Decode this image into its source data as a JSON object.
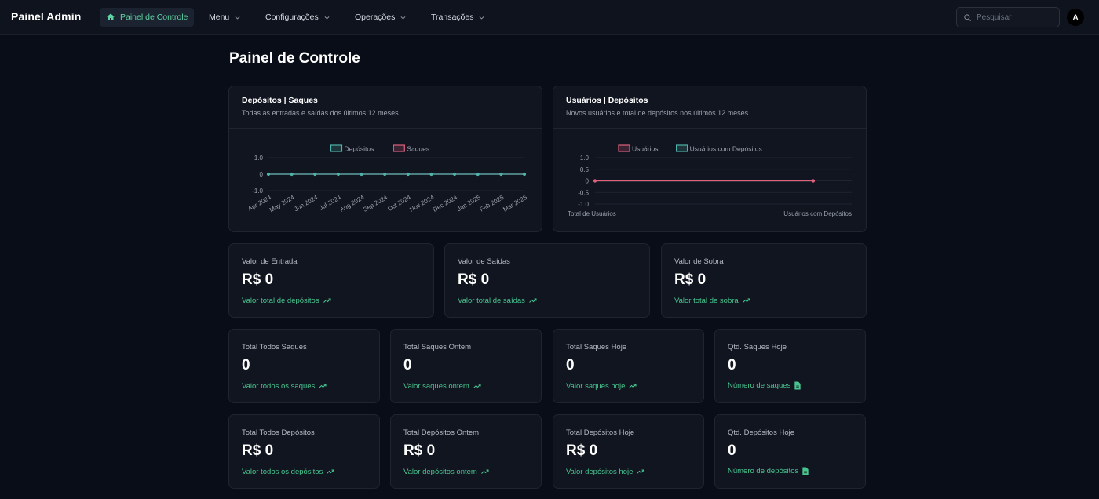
{
  "app": {
    "brand": "Painel Admin",
    "accent": "#5fd4a2",
    "background": "#090d17"
  },
  "nav": {
    "items": [
      {
        "label": "Painel de Controle",
        "icon": "home-icon",
        "active": true
      },
      {
        "label": "Menu",
        "icon": "chevron-down-icon"
      },
      {
        "label": "Configurações",
        "icon": "chevron-down-icon"
      },
      {
        "label": "Operações",
        "icon": "chevron-down-icon"
      },
      {
        "label": "Transações",
        "icon": "chevron-down-icon"
      }
    ]
  },
  "search": {
    "placeholder": "Pesquisar",
    "value": ""
  },
  "user": {
    "avatar_initial": "A"
  },
  "page": {
    "title": "Painel de Controle"
  },
  "chart_data": [
    {
      "type": "line",
      "title": "Depósitos | Saques",
      "subtitle": "Todas as entradas e saídas dos últimos 12 meses.",
      "legend": "top-center",
      "categories": [
        "Apr 2024",
        "May 2024",
        "Jun 2024",
        "Jul 2024",
        "Aug 2024",
        "Sep 2024",
        "Oct 2024",
        "Nov 2024",
        "Dec 2024",
        "Jan 2025",
        "Feb 2025",
        "Mar 2025"
      ],
      "series": [
        {
          "name": "Depósitos",
          "color": "#4fb3a9",
          "values": [
            0,
            0,
            0,
            0,
            0,
            0,
            0,
            0,
            0,
            0,
            0,
            0
          ]
        },
        {
          "name": "Saques",
          "color": "#e0607e",
          "values": [
            0,
            0,
            0,
            0,
            0,
            0,
            0,
            0,
            0,
            0,
            0,
            0
          ]
        }
      ],
      "yticks": [
        "1.0",
        "0",
        "-1.0"
      ],
      "ylim": [
        -1,
        1
      ],
      "grid": true
    },
    {
      "type": "line",
      "title": "Usuários | Depósitos",
      "subtitle": "Novos usuários e total de depósitos nos últimos 12 meses.",
      "legend": "top-center",
      "categories": [
        "Total de Usuários",
        "Usuários com Depósitos"
      ],
      "series": [
        {
          "name": "Usuários",
          "color": "#e0607e",
          "values": [
            0,
            0
          ]
        },
        {
          "name": "Usuários com Depósitos",
          "color": "#4fb3a9",
          "values": [
            0,
            0
          ]
        }
      ],
      "yticks": [
        "1.0",
        "0.5",
        "0",
        "-0.5",
        "-1.0"
      ],
      "ylim": [
        -1,
        1
      ],
      "grid": true
    }
  ],
  "stats_row1": [
    {
      "label": "Valor de Entrada",
      "value": "R$ 0",
      "sub": "Valor total de depósitos",
      "icon": "trending-up-icon"
    },
    {
      "label": "Valor de Saídas",
      "value": "R$ 0",
      "sub": "Valor total de saídas",
      "icon": "trending-up-icon"
    },
    {
      "label": "Valor de Sobra",
      "value": "R$ 0",
      "sub": "Valor total de sobra",
      "icon": "trending-up-icon"
    }
  ],
  "stats_row2": [
    {
      "label": "Total Todos Saques",
      "value": "0",
      "sub": "Valor todos os saques",
      "icon": "trending-up-icon"
    },
    {
      "label": "Total Saques Ontem",
      "value": "0",
      "sub": "Valor saques ontem",
      "icon": "trending-up-icon"
    },
    {
      "label": "Total Saques Hoje",
      "value": "0",
      "sub": "Valor saques hoje",
      "icon": "trending-up-icon"
    },
    {
      "label": "Qtd. Saques Hoje",
      "value": "0",
      "sub": "Número de saques",
      "icon": "document-icon"
    }
  ],
  "stats_row3": [
    {
      "label": "Total Todos Depósitos",
      "value": "R$ 0",
      "sub": "Valor todos os depósitos",
      "icon": "trending-up-icon"
    },
    {
      "label": "Total Depósitos Ontem",
      "value": "R$ 0",
      "sub": "Valor depósitos ontem",
      "icon": "trending-up-icon"
    },
    {
      "label": "Total Depósitos Hoje",
      "value": "R$ 0",
      "sub": "Valor depósitos hoje",
      "icon": "trending-up-icon"
    },
    {
      "label": "Qtd. Depósitos Hoje",
      "value": "0",
      "sub": "Número de depósitos",
      "icon": "document-icon"
    }
  ]
}
